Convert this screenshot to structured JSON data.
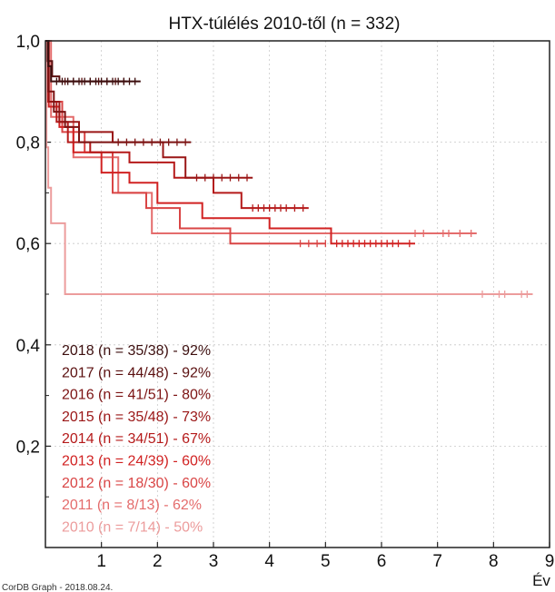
{
  "chart_data": {
    "type": "line",
    "title": "HTX-túlélés 2010-től (n = 332)",
    "xlabel": "Év",
    "ylabel": "",
    "xlim": [
      0,
      9
    ],
    "ylim": [
      0,
      1.0
    ],
    "x_ticks": [
      "1",
      "2",
      "3",
      "4",
      "5",
      "6",
      "7",
      "8",
      "9"
    ],
    "y_ticks": [
      "0,2",
      "0,4",
      "0,6",
      "0,8",
      "1,0"
    ],
    "footer": "CorDB Graph - 2018.08.24.",
    "grid": true,
    "legend_position": "bottom-left",
    "series": [
      {
        "name": "2018  (n = 35/38) - 92%",
        "color": "#3d0f0f",
        "step": [
          [
            0,
            1.0
          ],
          [
            0.05,
            0.95
          ],
          [
            0.1,
            0.92
          ],
          [
            1.7,
            0.92
          ]
        ],
        "censor_x": [
          0.2,
          0.3,
          0.4,
          0.5,
          0.6,
          0.7,
          0.8,
          0.9,
          1.0,
          1.1,
          1.2,
          1.3,
          1.4,
          1.5,
          1.6
        ]
      },
      {
        "name": "2017  (n = 44/48) - 92%",
        "color": "#5c1111",
        "step": [
          [
            0,
            1.0
          ],
          [
            0.04,
            0.96
          ],
          [
            0.12,
            0.93
          ],
          [
            0.25,
            0.92
          ],
          [
            1.45,
            0.92
          ]
        ],
        "censor_x": [
          0.35,
          0.5,
          0.65,
          0.8,
          0.95,
          1.1,
          1.25,
          1.4
        ]
      },
      {
        "name": "2016  (n = 41/51) - 80%",
        "color": "#7c1313",
        "step": [
          [
            0,
            1.0
          ],
          [
            0.05,
            0.9
          ],
          [
            0.15,
            0.86
          ],
          [
            0.35,
            0.83
          ],
          [
            0.6,
            0.8
          ],
          [
            2.6,
            0.8
          ]
        ],
        "censor_x": [
          1.3,
          1.45,
          1.6,
          1.75,
          1.9,
          2.05,
          2.2,
          2.35,
          2.5
        ]
      },
      {
        "name": "2015  (n = 35/48) - 73%",
        "color": "#9a1616",
        "step": [
          [
            0,
            1.0
          ],
          [
            0.06,
            0.88
          ],
          [
            0.25,
            0.84
          ],
          [
            0.6,
            0.82
          ],
          [
            1.2,
            0.8
          ],
          [
            2.1,
            0.77
          ],
          [
            2.5,
            0.73
          ],
          [
            3.7,
            0.73
          ]
        ],
        "censor_x": [
          2.7,
          2.85,
          3.0,
          3.15,
          3.3,
          3.45,
          3.6
        ]
      },
      {
        "name": "2014  (n = 34/51) - 67%",
        "color": "#b51a1a",
        "step": [
          [
            0,
            1.0
          ],
          [
            0.05,
            0.88
          ],
          [
            0.2,
            0.84
          ],
          [
            0.4,
            0.8
          ],
          [
            0.8,
            0.78
          ],
          [
            1.5,
            0.76
          ],
          [
            2.3,
            0.73
          ],
          [
            3.0,
            0.7
          ],
          [
            3.5,
            0.67
          ],
          [
            4.7,
            0.67
          ]
        ],
        "censor_x": [
          3.7,
          3.8,
          3.9,
          4.0,
          4.1,
          4.2,
          4.3,
          4.45,
          4.6
        ]
      },
      {
        "name": "2013  (n = 24/39) - 60%",
        "color": "#d12222",
        "step": [
          [
            0,
            1.0
          ],
          [
            0.06,
            0.87
          ],
          [
            0.25,
            0.83
          ],
          [
            0.5,
            0.78
          ],
          [
            1.0,
            0.74
          ],
          [
            1.5,
            0.72
          ],
          [
            2.0,
            0.68
          ],
          [
            2.8,
            0.65
          ],
          [
            4.0,
            0.63
          ],
          [
            5.1,
            0.6
          ],
          [
            6.6,
            0.6
          ]
        ],
        "censor_x": [
          5.2,
          5.3,
          5.4,
          5.5,
          5.6,
          5.7,
          5.8,
          5.9,
          6.0,
          6.1,
          6.2,
          6.3,
          6.5
        ]
      },
      {
        "name": "2012  (n = 18/30) - 60%",
        "color": "#d94545",
        "step": [
          [
            0,
            1.0
          ],
          [
            0.05,
            0.88
          ],
          [
            0.3,
            0.82
          ],
          [
            0.7,
            0.78
          ],
          [
            1.2,
            0.7
          ],
          [
            1.8,
            0.67
          ],
          [
            2.4,
            0.63
          ],
          [
            3.3,
            0.6
          ],
          [
            5.0,
            0.6
          ]
        ],
        "censor_x": [
          4.55,
          4.7,
          4.85,
          5.0
        ]
      },
      {
        "name": "2011  (n = 8/13) - 62%",
        "color": "#e46c6c",
        "step": [
          [
            0,
            1.0
          ],
          [
            0.1,
            0.85
          ],
          [
            0.5,
            0.77
          ],
          [
            1.3,
            0.7
          ],
          [
            1.9,
            0.62
          ],
          [
            7.7,
            0.62
          ]
        ],
        "censor_x": [
          6.6,
          6.75,
          7.1,
          7.2,
          7.4,
          7.6
        ]
      },
      {
        "name": "2010  (n = 7/14) - 50%",
        "color": "#ec9c9c",
        "step": [
          [
            0,
            1.0
          ],
          [
            0.02,
            0.79
          ],
          [
            0.05,
            0.71
          ],
          [
            0.1,
            0.64
          ],
          [
            0.35,
            0.5
          ],
          [
            8.7,
            0.5
          ]
        ],
        "censor_x": [
          7.8,
          8.1,
          8.2,
          8.5,
          8.6
        ]
      }
    ]
  }
}
